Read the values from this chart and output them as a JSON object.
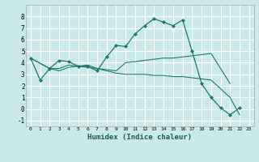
{
  "title": "",
  "xlabel": "Humidex (Indice chaleur)",
  "background_color": "#cce9e9",
  "grid_color": "#ffffff",
  "line_color": "#1a7a6e",
  "xlim": [
    -0.5,
    23.5
  ],
  "ylim": [
    -1.5,
    9.0
  ],
  "xticks": [
    0,
    1,
    2,
    3,
    4,
    5,
    6,
    7,
    8,
    9,
    10,
    11,
    12,
    13,
    14,
    15,
    16,
    17,
    18,
    19,
    20,
    21,
    22,
    23
  ],
  "yticks": [
    -1,
    0,
    1,
    2,
    3,
    4,
    5,
    6,
    7,
    8
  ],
  "line1_x": [
    0,
    1,
    2,
    3,
    4,
    5,
    6,
    7,
    8,
    9,
    10,
    11,
    12,
    13,
    14,
    15,
    16,
    17,
    18,
    19,
    20,
    21,
    22
  ],
  "line1_y": [
    4.4,
    2.5,
    3.5,
    4.2,
    4.1,
    3.7,
    3.7,
    3.3,
    4.5,
    5.5,
    5.4,
    6.5,
    7.2,
    7.8,
    7.5,
    7.2,
    7.7,
    5.0,
    2.2,
    1.0,
    0.1,
    -0.5,
    0.1
  ],
  "line2_x": [
    0,
    2,
    3,
    4,
    5,
    6,
    7,
    8,
    9,
    10,
    11,
    12,
    13,
    14,
    15,
    16,
    17,
    18,
    19,
    21
  ],
  "line2_y": [
    4.4,
    3.5,
    3.5,
    3.8,
    3.7,
    3.8,
    3.5,
    3.4,
    3.3,
    4.0,
    4.1,
    4.2,
    4.3,
    4.4,
    4.4,
    4.5,
    4.6,
    4.7,
    4.8,
    2.2
  ],
  "line3_x": [
    0,
    2,
    3,
    4,
    5,
    6,
    7,
    8,
    9,
    10,
    11,
    12,
    13,
    14,
    15,
    16,
    17,
    18,
    19,
    21,
    22
  ],
  "line3_y": [
    4.4,
    3.5,
    3.3,
    3.6,
    3.7,
    3.6,
    3.5,
    3.3,
    3.1,
    3.0,
    3.0,
    3.0,
    2.9,
    2.9,
    2.8,
    2.8,
    2.7,
    2.6,
    2.5,
    1.0,
    -0.5
  ]
}
